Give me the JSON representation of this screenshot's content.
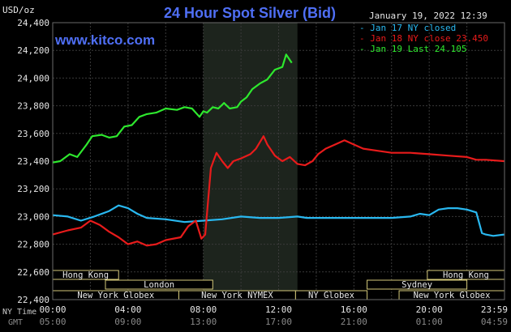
{
  "chart_data": {
    "type": "line",
    "title": "24 Hour Spot Silver (Bid)",
    "source_url": "www.kitco.com",
    "timestamp": "January 19, 2022 12:39",
    "ylabel": "USD/oz",
    "ylim": [
      22.4,
      24.4
    ],
    "yticks": [
      "24,400",
      "24,200",
      "24,000",
      "23,800",
      "23,600",
      "23,400",
      "23,200",
      "23,000",
      "22,800",
      "22,600",
      "22,400"
    ],
    "x_axis_label_primary": "NY Time",
    "x_axis_label_secondary": "GMT",
    "xticks_ny": [
      "00:00",
      "04:00",
      "08:00",
      "12:00",
      "16:00",
      "20:00",
      "23:59"
    ],
    "xticks_gmt": [
      "05:00",
      "09:00",
      "13:00",
      "17:00",
      "21:00",
      "01:00",
      "04:59"
    ],
    "grid": true,
    "legend_placement": "top-right",
    "series": [
      {
        "name": "Jan 17 NY closed",
        "color": "#29b8f0",
        "values": [
          [
            0,
            23.01
          ],
          [
            0.8,
            23.0
          ],
          [
            1.5,
            22.97
          ],
          [
            2.2,
            23.0
          ],
          [
            3,
            23.04
          ],
          [
            3.5,
            23.08
          ],
          [
            4,
            23.06
          ],
          [
            4.5,
            23.02
          ],
          [
            5,
            22.99
          ],
          [
            6,
            22.98
          ],
          [
            7,
            22.96
          ],
          [
            8,
            22.97
          ],
          [
            9,
            22.98
          ],
          [
            10,
            23.0
          ],
          [
            11,
            22.99
          ],
          [
            12,
            22.99
          ],
          [
            13,
            23.0
          ],
          [
            13.5,
            22.99
          ],
          [
            14,
            22.99
          ],
          [
            16,
            22.99
          ],
          [
            18,
            22.99
          ],
          [
            19,
            23.0
          ],
          [
            19.5,
            23.02
          ],
          [
            20,
            23.01
          ],
          [
            20.5,
            23.05
          ],
          [
            21,
            23.06
          ],
          [
            21.5,
            23.06
          ],
          [
            22,
            23.05
          ],
          [
            22.5,
            23.03
          ],
          [
            22.8,
            22.88
          ],
          [
            23,
            22.87
          ],
          [
            23.4,
            22.86
          ],
          [
            23.98,
            22.87
          ]
        ]
      },
      {
        "name": "Jan 18 NY close 23.450",
        "color": "#e81b1b",
        "values": [
          [
            0,
            22.87
          ],
          [
            0.8,
            22.9
          ],
          [
            1.5,
            22.92
          ],
          [
            2,
            22.97
          ],
          [
            2.5,
            22.94
          ],
          [
            3,
            22.89
          ],
          [
            3.5,
            22.85
          ],
          [
            4,
            22.8
          ],
          [
            4.5,
            22.82
          ],
          [
            5,
            22.79
          ],
          [
            5.5,
            22.8
          ],
          [
            6,
            22.83
          ],
          [
            6.8,
            22.85
          ],
          [
            7.2,
            22.93
          ],
          [
            7.6,
            22.97
          ],
          [
            7.9,
            22.84
          ],
          [
            8.1,
            22.87
          ],
          [
            8.4,
            23.35
          ],
          [
            8.7,
            23.46
          ],
          [
            9,
            23.4
          ],
          [
            9.3,
            23.35
          ],
          [
            9.6,
            23.4
          ],
          [
            10,
            23.42
          ],
          [
            10.5,
            23.45
          ],
          [
            10.8,
            23.49
          ],
          [
            11.2,
            23.58
          ],
          [
            11.4,
            23.52
          ],
          [
            11.8,
            23.44
          ],
          [
            12.2,
            23.4
          ],
          [
            12.6,
            23.43
          ],
          [
            13,
            23.38
          ],
          [
            13.4,
            23.37
          ],
          [
            13.8,
            23.4
          ],
          [
            14.1,
            23.45
          ],
          [
            14.5,
            23.49
          ],
          [
            15,
            23.52
          ],
          [
            15.5,
            23.55
          ],
          [
            16,
            23.52
          ],
          [
            16.5,
            23.49
          ],
          [
            17,
            23.48
          ],
          [
            18,
            23.46
          ],
          [
            19,
            23.46
          ],
          [
            20,
            23.45
          ],
          [
            21,
            23.44
          ],
          [
            22,
            23.43
          ],
          [
            22.5,
            23.41
          ],
          [
            23,
            23.41
          ],
          [
            23.98,
            23.4
          ]
        ]
      },
      {
        "name": "Jan 19 Last 24.105",
        "color": "#2ee82e",
        "values": [
          [
            0,
            23.39
          ],
          [
            0.4,
            23.4
          ],
          [
            0.9,
            23.45
          ],
          [
            1.3,
            23.43
          ],
          [
            1.8,
            23.52
          ],
          [
            2.1,
            23.58
          ],
          [
            2.6,
            23.59
          ],
          [
            3,
            23.57
          ],
          [
            3.4,
            23.58
          ],
          [
            3.8,
            23.65
          ],
          [
            4.2,
            23.66
          ],
          [
            4.6,
            23.72
          ],
          [
            5,
            23.74
          ],
          [
            5.5,
            23.75
          ],
          [
            6,
            23.78
          ],
          [
            6.6,
            23.77
          ],
          [
            7,
            23.79
          ],
          [
            7.4,
            23.78
          ],
          [
            7.8,
            23.72
          ],
          [
            8,
            23.76
          ],
          [
            8.2,
            23.75
          ],
          [
            8.5,
            23.79
          ],
          [
            8.8,
            23.78
          ],
          [
            9.1,
            23.82
          ],
          [
            9.4,
            23.78
          ],
          [
            9.8,
            23.79
          ],
          [
            10,
            23.83
          ],
          [
            10.3,
            23.86
          ],
          [
            10.6,
            23.92
          ],
          [
            11,
            23.96
          ],
          [
            11.4,
            23.99
          ],
          [
            11.8,
            24.06
          ],
          [
            12.2,
            24.08
          ],
          [
            12.4,
            24.17
          ],
          [
            12.7,
            24.11
          ]
        ]
      }
    ],
    "sessions": [
      {
        "label": "Hong Kong",
        "start": -0.1,
        "end": 3.5,
        "row": 0
      },
      {
        "label": "London",
        "start": 2.8,
        "end": 8.5,
        "row": 1
      },
      {
        "label": "New York Globex",
        "start": -0.1,
        "end": 6.7,
        "row": 2
      },
      {
        "label": "New York NYMEX",
        "start": 6.7,
        "end": 12.9,
        "row": 2
      },
      {
        "label": "NY Globex",
        "start": 12.9,
        "end": 16.7,
        "row": 2
      },
      {
        "label": "Hong Kong",
        "start": 19.9,
        "end": 24.2,
        "row": 0
      },
      {
        "label": "Sydney",
        "start": 16.7,
        "end": 22.0,
        "row": 1
      },
      {
        "label": "New York Globex",
        "start": 18.4,
        "end": 24.2,
        "row": 2
      }
    ],
    "highlight_band": {
      "start": 8.0,
      "end": 13.0
    },
    "colors": {
      "background": "#000000",
      "title": "#4f6ff5",
      "grid": "#3a3a3a",
      "highlight": "#1d241d",
      "session_border": "#d4c97a"
    }
  }
}
